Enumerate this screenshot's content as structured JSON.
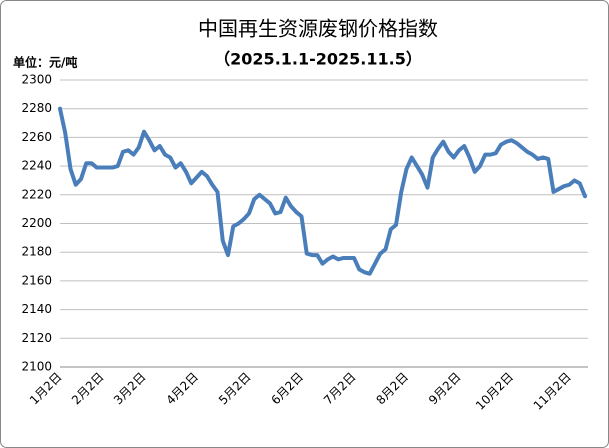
{
  "chart_data": {
    "type": "line",
    "title": "中国再生资源废钢价格指数",
    "subtitle": "（2025.1.1-2025.11.5）",
    "y_label": "单位：元/吨",
    "categories": [
      "1月2日",
      null,
      null,
      null,
      null,
      null,
      null,
      null,
      "2月2日",
      null,
      null,
      null,
      null,
      null,
      null,
      null,
      "3月2日",
      null,
      null,
      null,
      null,
      null,
      null,
      null,
      null,
      null,
      "4月2日",
      null,
      null,
      null,
      null,
      null,
      null,
      null,
      null,
      null,
      "5月2日",
      null,
      null,
      null,
      null,
      null,
      null,
      null,
      null,
      null,
      "6月2日",
      null,
      null,
      null,
      null,
      null,
      null,
      null,
      null,
      null,
      "7月2日",
      null,
      null,
      null,
      null,
      null,
      null,
      null,
      null,
      null,
      "8月2日",
      null,
      null,
      null,
      null,
      null,
      null,
      null,
      null,
      null,
      "9月2日",
      null,
      null,
      null,
      null,
      null,
      null,
      null,
      null,
      null,
      "10月2日",
      null,
      null,
      null,
      null,
      null,
      null,
      null,
      null,
      null,
      null,
      "11月2日",
      null,
      null,
      null
    ],
    "series": [
      {
        "name": "废钢价格指数",
        "color": "#4a7ebb",
        "values": [
          2280,
          2263,
          2238,
          2227,
          2231,
          2242,
          2242,
          2239,
          2239,
          2239,
          2239,
          2240,
          2250,
          2251,
          2248,
          2253,
          2264,
          2258,
          2251,
          2254,
          2248,
          2246,
          2239,
          2242,
          2236,
          2228,
          2232,
          2236,
          2233,
          2227,
          2222,
          2188,
          2178,
          2198,
          2200,
          2203,
          2207,
          2217,
          2220,
          2217,
          2214,
          2207,
          2208,
          2218,
          2212,
          2208,
          2205,
          2179,
          2178,
          2178,
          2172,
          2175,
          2177,
          2175,
          2176,
          2176,
          2176,
          2168,
          2166,
          2165,
          2172,
          2179,
          2182,
          2196,
          2199,
          2222,
          2238,
          2246,
          2240,
          2234,
          2225,
          2246,
          2252,
          2257,
          2250,
          2246,
          2251,
          2254,
          2246,
          2236,
          2240,
          2248,
          2248,
          2249,
          2255,
          2257,
          2258,
          2256,
          2253,
          2250,
          2248,
          2245,
          2246,
          2245,
          2222,
          2224,
          2226,
          2227,
          2230,
          2228,
          2219
        ]
      }
    ],
    "ylim": [
      2100,
      2300
    ],
    "yticks": [
      2100,
      2120,
      2140,
      2160,
      2180,
      2200,
      2220,
      2240,
      2260,
      2280,
      2300
    ],
    "grid": true
  }
}
